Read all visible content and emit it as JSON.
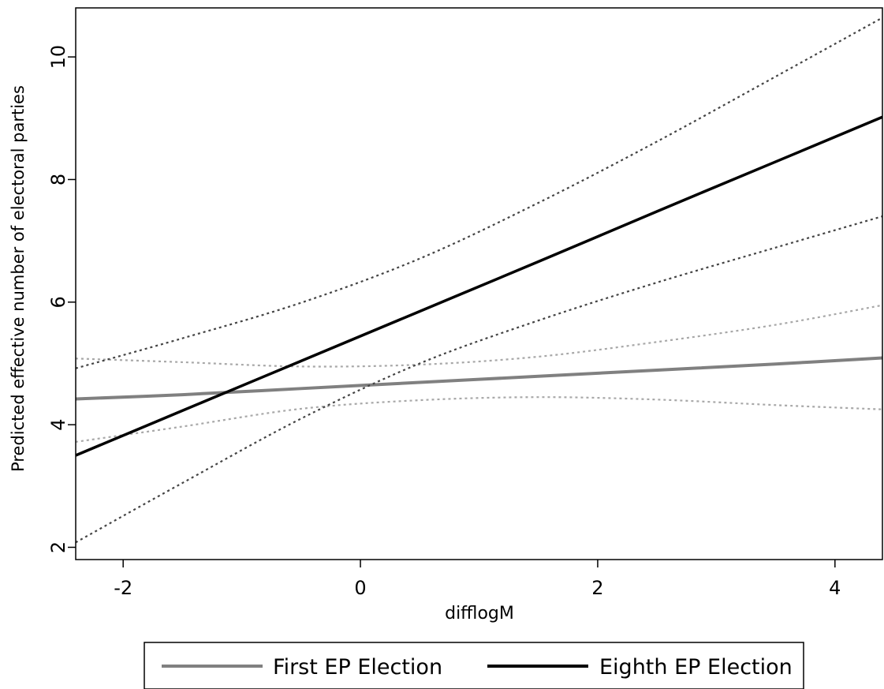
{
  "chart_data": {
    "type": "line",
    "title": "",
    "xlabel": "difflogM",
    "ylabel": "Predicted effective number of electoral parties",
    "xlim": [
      -2.4,
      4.4
    ],
    "ylim": [
      1.8,
      10.8
    ],
    "x_ticks": [
      -2,
      0,
      2,
      4
    ],
    "x_tick_labels": [
      "-2",
      "0",
      "2",
      "4"
    ],
    "y_ticks": [
      2,
      4,
      6,
      8,
      10
    ],
    "y_tick_labels": [
      "2",
      "4",
      "6",
      "8",
      "10"
    ],
    "grid": false,
    "legend_position": "bottom",
    "series": [
      {
        "name": "First EP Election",
        "color": "#808080",
        "style": "solid",
        "x": [
          -2.4,
          -1.5,
          -0.5,
          0.5,
          1.5,
          2.5,
          3.5,
          4.4
        ],
        "values": [
          4.42,
          4.49,
          4.59,
          4.69,
          4.79,
          4.89,
          4.99,
          5.09
        ],
        "ci_lower": [
          3.72,
          3.97,
          4.26,
          4.4,
          4.45,
          4.41,
          4.32,
          4.25
        ],
        "ci_upper": [
          5.08,
          5.02,
          4.95,
          4.98,
          5.11,
          5.35,
          5.63,
          5.95
        ]
      },
      {
        "name": "Eighth EP Election",
        "color": "#000000",
        "style": "solid",
        "x": [
          -2.4,
          -1.5,
          -0.5,
          0.5,
          1.5,
          2.5,
          3.5,
          4.4
        ],
        "values": [
          3.5,
          4.23,
          5.04,
          5.85,
          6.66,
          7.48,
          8.29,
          9.02
        ],
        "ci_lower": [
          2.08,
          3.05,
          4.1,
          5.0,
          5.7,
          6.32,
          6.89,
          7.4
        ],
        "ci_upper": [
          4.92,
          5.41,
          5.99,
          6.71,
          7.62,
          8.62,
          9.68,
          10.64
        ]
      }
    ]
  }
}
